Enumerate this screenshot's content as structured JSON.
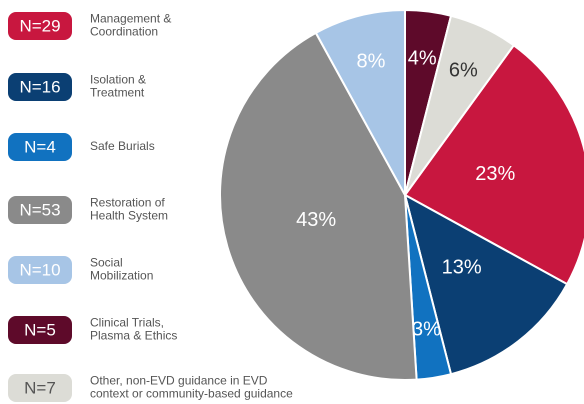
{
  "chart_data": {
    "type": "pie",
    "categories": [
      [
        "Management &",
        "Coordination"
      ],
      [
        "Isolation &",
        "Treatment"
      ],
      [
        "Safe Burials"
      ],
      [
        "Restoration of",
        "Health System"
      ],
      [
        "Social",
        "Mobilization"
      ],
      [
        "Clinical Trials,",
        "Plasma & Ethics"
      ],
      [
        "Other, non-EVD guidance in EVD",
        "context or community-based guidance"
      ]
    ],
    "counts": [
      29,
      16,
      4,
      53,
      10,
      5,
      7
    ],
    "count_labels": [
      "N=29",
      "N=16",
      "N=4",
      "N=53",
      "N=10",
      "N=5",
      "N=7"
    ],
    "values": [
      23,
      13,
      3,
      43,
      8,
      4,
      6
    ],
    "value_labels": [
      "23%",
      "13%",
      "3%",
      "43%",
      "8%",
      "4%",
      "6%"
    ],
    "colors": [
      "#c8173f",
      "#0b3f73",
      "#1172c0",
      "#8a8a8a",
      "#a7c5e6",
      "#5e0a2a",
      "#dcdcd6"
    ]
  }
}
